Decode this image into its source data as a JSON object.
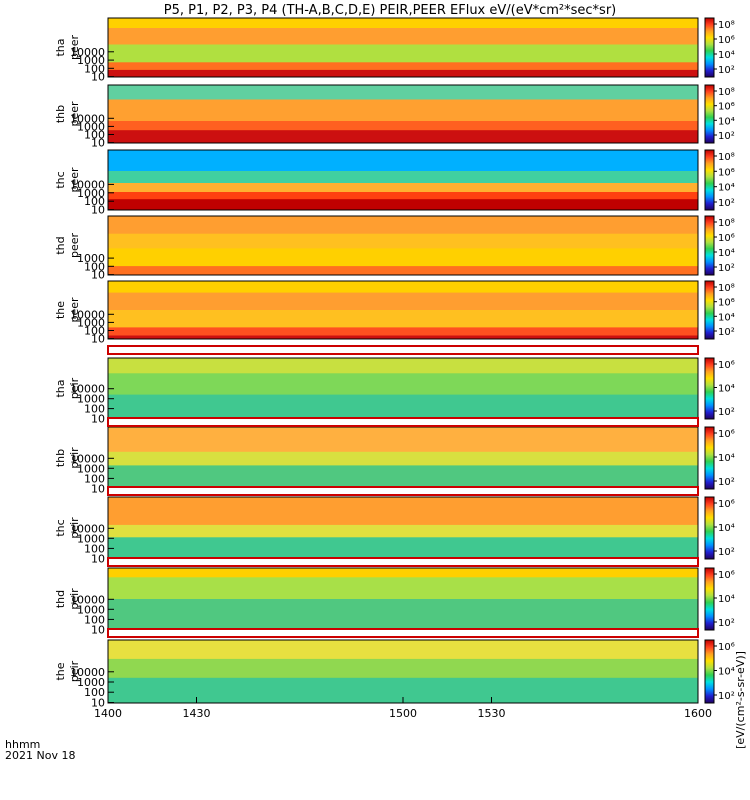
{
  "chart_data": {
    "type": "heatmap",
    "title": "P5, P1, P2, P3, P4 (TH-A,B,C,D,E) PEIR,PEER EFlux eV/(eV*cm²*sec*sr)",
    "x_axis": {
      "range": [
        1400,
        1600
      ],
      "ticks": [
        "1400",
        "1430",
        "1500",
        "1530",
        "1600"
      ],
      "label_line1": "hhmm",
      "label_line2": "2021 Nov 18"
    },
    "colorbar_label": "[eV/(cm²-s-sr-eV)]",
    "colormap": [
      "#200060",
      "#2020d0",
      "#0090ff",
      "#00e0e0",
      "#30d050",
      "#b0e040",
      "#ffe000",
      "#ffa020",
      "#ff4020",
      "#c00000"
    ],
    "panels": [
      {
        "probe": "tha",
        "species": "peer",
        "yticks": [
          "1000",
          "100",
          "10"
        ],
        "ymax_tick": "10000",
        "colorbar_ticks": [
          "10⁸",
          "10⁶",
          "10⁴",
          "10²"
        ],
        "scale": {
          "min_exp": 1,
          "max_exp": 8
        },
        "bands": [
          {
            "y0": 0.0,
            "y1": 0.17,
            "color": "#ffd000"
          },
          {
            "y0": 0.17,
            "y1": 0.45,
            "color": "#ff9e30"
          },
          {
            "y0": 0.45,
            "y1": 0.75,
            "color": "#b0e040"
          },
          {
            "y0": 0.75,
            "y1": 0.88,
            "color": "#ff7020"
          },
          {
            "y0": 0.88,
            "y1": 1.0,
            "color": "#cc1010"
          }
        ]
      },
      {
        "probe": "thb",
        "species": "peer",
        "yticks": [
          "10000",
          "1000",
          "100",
          "10"
        ],
        "colorbar_ticks": [
          "10⁸",
          "10⁶",
          "10⁴",
          "10²"
        ],
        "scale": {
          "min_exp": 1,
          "max_exp": 8
        },
        "bands": [
          {
            "y0": 0.0,
            "y1": 0.25,
            "color": "#60d0a0"
          },
          {
            "y0": 0.25,
            "y1": 0.62,
            "color": "#ffa030"
          },
          {
            "y0": 0.62,
            "y1": 0.78,
            "color": "#ff6020"
          },
          {
            "y0": 0.78,
            "y1": 1.0,
            "color": "#cc1010"
          }
        ]
      },
      {
        "probe": "thc",
        "species": "peer",
        "yticks": [
          "10000",
          "1000",
          "100",
          "10"
        ],
        "colorbar_ticks": [
          "10⁸",
          "10⁶",
          "10⁴",
          "10²"
        ],
        "scale": {
          "min_exp": 1,
          "max_exp": 8
        },
        "bands": [
          {
            "y0": 0.0,
            "y1": 0.35,
            "color": "#00b0ff"
          },
          {
            "y0": 0.35,
            "y1": 0.55,
            "color": "#40d0a0"
          },
          {
            "y0": 0.55,
            "y1": 0.7,
            "color": "#ffb030"
          },
          {
            "y0": 0.7,
            "y1": 0.82,
            "color": "#ff4010"
          },
          {
            "y0": 0.82,
            "y1": 1.0,
            "color": "#c00000"
          }
        ]
      },
      {
        "probe": "thd",
        "species": "peer",
        "yticks": [
          "1000",
          "100",
          "10"
        ],
        "colorbar_ticks": [
          "10⁸",
          "10⁶",
          "10⁴",
          "10²"
        ],
        "scale": {
          "min_exp": 1,
          "max_exp": 8
        },
        "bands": [
          {
            "y0": 0.0,
            "y1": 0.3,
            "color": "#ff9e30"
          },
          {
            "y0": 0.3,
            "y1": 0.55,
            "color": "#ffc020"
          },
          {
            "y0": 0.55,
            "y1": 0.85,
            "color": "#ffd000"
          },
          {
            "y0": 0.85,
            "y1": 1.0,
            "color": "#ff7020"
          }
        ]
      },
      {
        "probe": "the",
        "species": "peer",
        "yticks": [
          "10000",
          "1000",
          "100",
          "10"
        ],
        "colorbar_ticks": [
          "10⁸",
          "10⁶",
          "10⁴",
          "10²"
        ],
        "scale": {
          "min_exp": 1,
          "max_exp": 8
        },
        "bands": [
          {
            "y0": 0.0,
            "y1": 0.2,
            "color": "#ffd000"
          },
          {
            "y0": 0.2,
            "y1": 0.5,
            "color": "#ff9e30"
          },
          {
            "y0": 0.5,
            "y1": 0.8,
            "color": "#ffc020"
          },
          {
            "y0": 0.8,
            "y1": 0.94,
            "color": "#ff5020"
          },
          {
            "y0": 0.94,
            "y1": 1.0,
            "color": "#cc1010"
          }
        ]
      },
      {
        "probe": "tha",
        "species": "peir",
        "yticks": [
          "10000",
          "1000",
          "100",
          "10"
        ],
        "colorbar_ticks": [
          "10⁶",
          "10⁴",
          "10²"
        ],
        "scale": {
          "min_exp": 1,
          "max_exp": 7
        },
        "bands": [
          {
            "y0": 0.0,
            "y1": 0.25,
            "color": "#c8e040"
          },
          {
            "y0": 0.25,
            "y1": 0.6,
            "color": "#7ed858"
          },
          {
            "y0": 0.6,
            "y1": 1.0,
            "color": "#40c890"
          }
        ]
      },
      {
        "probe": "thb",
        "species": "peir",
        "yticks": [
          "10000",
          "1000",
          "100",
          "10"
        ],
        "colorbar_ticks": [
          "10⁶",
          "10⁴",
          "10²"
        ],
        "scale": {
          "min_exp": 1,
          "max_exp": 7
        },
        "bands": [
          {
            "y0": 0.0,
            "y1": 0.4,
            "color": "#ffb040"
          },
          {
            "y0": 0.4,
            "y1": 0.62,
            "color": "#d8e040"
          },
          {
            "y0": 0.62,
            "y1": 1.0,
            "color": "#50c880"
          }
        ]
      },
      {
        "probe": "thc",
        "species": "peir",
        "yticks": [
          "10000",
          "1000",
          "100",
          "10"
        ],
        "colorbar_ticks": [
          "10⁶",
          "10⁴",
          "10²"
        ],
        "scale": {
          "min_exp": 1,
          "max_exp": 7
        },
        "bands": [
          {
            "y0": 0.0,
            "y1": 0.45,
            "color": "#ff9e30"
          },
          {
            "y0": 0.45,
            "y1": 0.65,
            "color": "#e0e040"
          },
          {
            "y0": 0.65,
            "y1": 1.0,
            "color": "#40c890"
          }
        ]
      },
      {
        "probe": "thd",
        "species": "peir",
        "yticks": [
          "10000",
          "1000",
          "100",
          "10"
        ],
        "colorbar_ticks": [
          "10⁶",
          "10⁴",
          "10²"
        ],
        "scale": {
          "min_exp": 1,
          "max_exp": 7
        },
        "bands": [
          {
            "y0": 0.0,
            "y1": 0.15,
            "color": "#ffd000"
          },
          {
            "y0": 0.15,
            "y1": 0.5,
            "color": "#a8e048"
          },
          {
            "y0": 0.5,
            "y1": 1.0,
            "color": "#50c880"
          }
        ]
      },
      {
        "probe": "the",
        "species": "peir",
        "yticks": [
          "10000",
          "1000",
          "100",
          "10"
        ],
        "colorbar_ticks": [
          "10⁶",
          "10⁴",
          "10²"
        ],
        "scale": {
          "min_exp": 1,
          "max_exp": 7
        },
        "bands": [
          {
            "y0": 0.0,
            "y1": 0.3,
            "color": "#e8e040"
          },
          {
            "y0": 0.3,
            "y1": 0.6,
            "color": "#90d850"
          },
          {
            "y0": 0.6,
            "y1": 1.0,
            "color": "#40c890"
          }
        ]
      }
    ]
  }
}
